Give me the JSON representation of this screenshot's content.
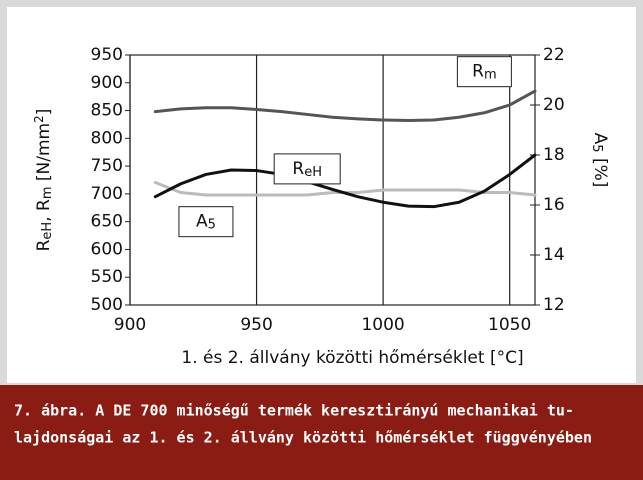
{
  "chart_data": {
    "type": "line",
    "xlabel": "1. és 2. állvány közötti hőmérséklet [°C]",
    "ylabel_parts": [
      {
        "text": "R"
      },
      {
        "text": "eH",
        "sub": true
      },
      {
        "text": ", R"
      },
      {
        "text": "m",
        "sub": true
      },
      {
        "text": " [N/mm"
      },
      {
        "text": "2",
        "sup": true
      },
      {
        "text": "]"
      }
    ],
    "y2label_parts": [
      {
        "text": "A"
      },
      {
        "text": "5",
        "sub": true
      },
      {
        "text": " [%]"
      }
    ],
    "x": [
      910,
      920,
      930,
      940,
      950,
      960,
      970,
      980,
      990,
      1000,
      1010,
      1020,
      1030,
      1040,
      1050,
      1060
    ],
    "series": [
      {
        "name": "Rm",
        "color": "#555555",
        "values": [
          848,
          853,
          855,
          855,
          852,
          848,
          843,
          838,
          835,
          833,
          832,
          833,
          838,
          846,
          860,
          885
        ]
      },
      {
        "name": "ReH",
        "color": "#111111",
        "values": [
          695,
          718,
          735,
          743,
          742,
          735,
          722,
          708,
          695,
          685,
          678,
          677,
          685,
          705,
          735,
          770
        ]
      },
      {
        "name": "A5",
        "color": "#bbbbbb",
        "axis": "y2",
        "values": [
          16.9,
          16.5,
          16.4,
          16.4,
          16.4,
          16.4,
          16.4,
          16.5,
          16.5,
          16.6,
          16.6,
          16.6,
          16.6,
          16.5,
          16.5,
          16.4
        ]
      }
    ],
    "annotations": [
      {
        "parts": [
          {
            "text": "R"
          },
          {
            "text": "m",
            "sub": true
          }
        ],
        "x": 1040,
        "y": 920
      },
      {
        "parts": [
          {
            "text": "R"
          },
          {
            "text": "eH",
            "sub": true
          }
        ],
        "x": 970,
        "y": 745
      },
      {
        "parts": [
          {
            "text": "A"
          },
          {
            "text": "5",
            "sub": true
          }
        ],
        "x": 930,
        "y": 650
      }
    ],
    "xlim": [
      900,
      1060
    ],
    "xticks": [
      900,
      950,
      1000,
      1050
    ],
    "ylim": [
      500,
      950
    ],
    "yticks": [
      500,
      550,
      600,
      650,
      700,
      750,
      800,
      850,
      900,
      950
    ],
    "y2lim": [
      12,
      22
    ],
    "y2ticks": [
      12,
      14,
      16,
      18,
      20,
      22
    ],
    "grid": "x",
    "caption_lines": [
      "7. ábra. A DE 700 minőségű termék keresztirányú mechanikai tu-",
      "lajdonságai az 1. és 2. állvány közötti hőmérséklet függvényében"
    ]
  }
}
